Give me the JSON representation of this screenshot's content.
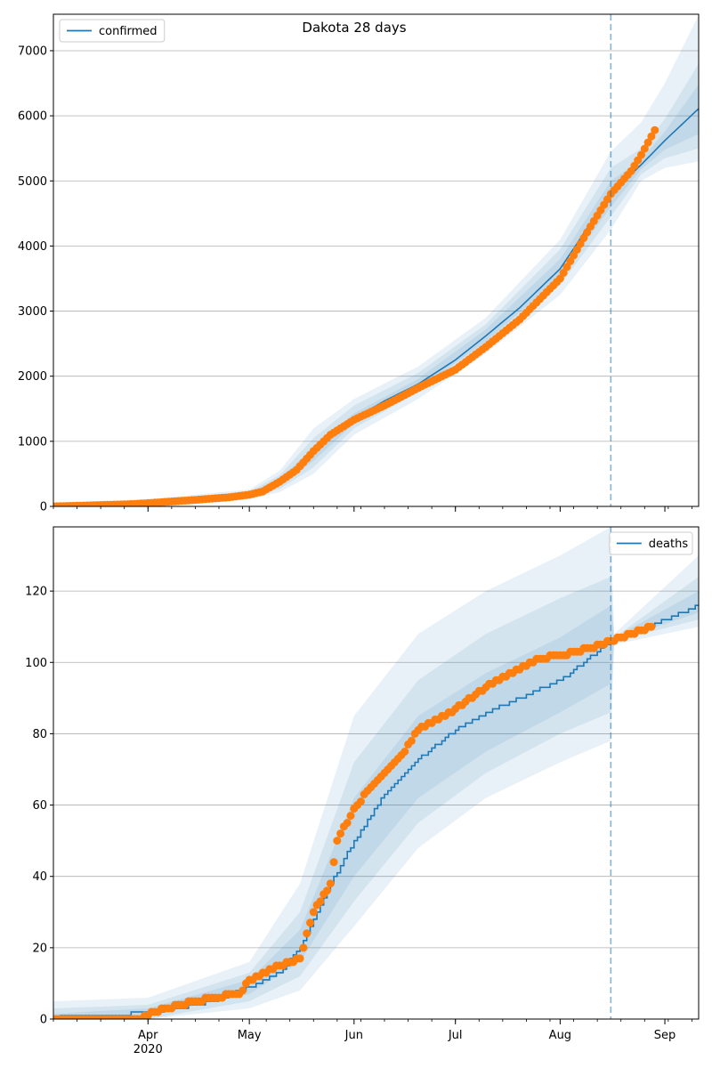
{
  "title": "Dakota 28 days",
  "colors": {
    "model": "#1f77b4",
    "observed": "#ff7f0e",
    "grid": "#b0b0b0"
  },
  "x_tick_labels": [
    {
      "date": "2020-04-01",
      "label": "Apr",
      "sublabel": "2020"
    },
    {
      "date": "2020-05-01",
      "label": "May"
    },
    {
      "date": "2020-06-01",
      "label": "Jun"
    },
    {
      "date": "2020-07-01",
      "label": "Jul"
    },
    {
      "date": "2020-08-01",
      "label": "Aug"
    },
    {
      "date": "2020-09-01",
      "label": "Sep"
    }
  ],
  "chart_data": [
    {
      "type": "line",
      "legend": {
        "label": "confirmed",
        "position": "upper left"
      },
      "x_range": [
        "2020-03-04",
        "2020-09-11"
      ],
      "ylim": [
        0,
        7560
      ],
      "y_ticks": [
        0,
        1000,
        2000,
        3000,
        4000,
        5000,
        6000,
        7000
      ],
      "grid": "horizontal",
      "forecast_start": "2020-08-16",
      "model": {
        "name": "confirmed",
        "points": [
          [
            "2020-03-04",
            0
          ],
          [
            "2020-03-20",
            10
          ],
          [
            "2020-04-01",
            50
          ],
          [
            "2020-04-15",
            100
          ],
          [
            "2020-04-25",
            140
          ],
          [
            "2020-05-01",
            180
          ],
          [
            "2020-05-05",
            230
          ],
          [
            "2020-05-10",
            380
          ],
          [
            "2020-05-15",
            560
          ],
          [
            "2020-05-20",
            800
          ],
          [
            "2020-05-25",
            1050
          ],
          [
            "2020-06-01",
            1350
          ],
          [
            "2020-06-10",
            1620
          ],
          [
            "2020-06-20",
            1880
          ],
          [
            "2020-07-01",
            2250
          ],
          [
            "2020-07-10",
            2620
          ],
          [
            "2020-07-20",
            3050
          ],
          [
            "2020-08-01",
            3650
          ],
          [
            "2020-08-10",
            4350
          ],
          [
            "2020-08-16",
            4800
          ],
          [
            "2020-08-25",
            5250
          ],
          [
            "2020-09-01",
            5620
          ],
          [
            "2020-09-11",
            6110
          ]
        ]
      },
      "bands": [
        {
          "label": "outer",
          "points": [
            [
              "2020-03-04",
              0,
              60
            ],
            [
              "2020-04-01",
              10,
              110
            ],
            [
              "2020-05-01",
              110,
              260
            ],
            [
              "2020-05-10",
              220,
              550
            ],
            [
              "2020-05-20",
              500,
              1200
            ],
            [
              "2020-06-01",
              1100,
              1650
            ],
            [
              "2020-06-20",
              1650,
              2150
            ],
            [
              "2020-07-10",
              2350,
              2900
            ],
            [
              "2020-08-01",
              3250,
              4100
            ],
            [
              "2020-08-16",
              4250,
              5450
            ],
            [
              "2020-08-25",
              5000,
              5900
            ],
            [
              "2020-09-01",
              5200,
              6500
            ],
            [
              "2020-09-11",
              5300,
              7550
            ]
          ]
        },
        {
          "label": "mid",
          "points": [
            [
              "2020-03-04",
              0,
              40
            ],
            [
              "2020-04-01",
              20,
              90
            ],
            [
              "2020-05-01",
              130,
              230
            ],
            [
              "2020-05-10",
              270,
              480
            ],
            [
              "2020-05-20",
              600,
              1050
            ],
            [
              "2020-06-01",
              1200,
              1550
            ],
            [
              "2020-06-20",
              1750,
              2050
            ],
            [
              "2020-07-10",
              2450,
              2800
            ],
            [
              "2020-08-01",
              3400,
              3950
            ],
            [
              "2020-08-16",
              4450,
              5200
            ],
            [
              "2020-08-25",
              5100,
              5500
            ],
            [
              "2020-09-01",
              5350,
              5950
            ],
            [
              "2020-09-11",
              5500,
              6800
            ]
          ]
        },
        {
          "label": "inner",
          "points": [
            [
              "2020-03-04",
              0,
              20
            ],
            [
              "2020-04-01",
              35,
              70
            ],
            [
              "2020-05-01",
              150,
              210
            ],
            [
              "2020-05-10",
              320,
              430
            ],
            [
              "2020-05-20",
              700,
              900
            ],
            [
              "2020-06-01",
              1270,
              1430
            ],
            [
              "2020-06-20",
              1800,
              1960
            ],
            [
              "2020-07-10",
              2530,
              2720
            ],
            [
              "2020-08-01",
              3520,
              3800
            ],
            [
              "2020-08-16",
              4600,
              5000
            ],
            [
              "2020-08-25",
              5180,
              5330
            ],
            [
              "2020-09-01",
              5480,
              5760
            ],
            [
              "2020-09-11",
              5720,
              6480
            ]
          ]
        }
      ],
      "observed_points": [
        [
          "2020-03-04",
          0
        ],
        [
          "2020-03-25",
          30
        ],
        [
          "2020-04-01",
          50
        ],
        [
          "2020-04-15",
          100
        ],
        [
          "2020-04-25",
          140
        ],
        [
          "2020-05-01",
          180
        ],
        [
          "2020-05-05",
          230
        ],
        [
          "2020-05-10",
          380
        ],
        [
          "2020-05-15",
          560
        ],
        [
          "2020-05-20",
          850
        ],
        [
          "2020-05-25",
          1100
        ],
        [
          "2020-06-01",
          1330
        ],
        [
          "2020-06-10",
          1550
        ],
        [
          "2020-06-20",
          1820
        ],
        [
          "2020-07-01",
          2100
        ],
        [
          "2020-07-10",
          2450
        ],
        [
          "2020-07-20",
          2870
        ],
        [
          "2020-08-01",
          3500
        ],
        [
          "2020-08-10",
          4300
        ],
        [
          "2020-08-16",
          4800
        ],
        [
          "2020-08-22",
          5150
        ],
        [
          "2020-08-25",
          5400
        ],
        [
          "2020-08-29",
          5780
        ]
      ]
    },
    {
      "type": "line",
      "legend": {
        "label": "deaths",
        "position": "upper right"
      },
      "x_range": [
        "2020-03-04",
        "2020-09-11"
      ],
      "ylim": [
        0,
        138
      ],
      "y_ticks": [
        0,
        20,
        40,
        60,
        80,
        100,
        120
      ],
      "grid": "horizontal",
      "forecast_start": "2020-08-16",
      "model": {
        "name": "deaths",
        "points": [
          [
            "2020-03-04",
            0
          ],
          [
            "2020-03-08",
            1
          ],
          [
            "2020-03-26",
            1
          ],
          [
            "2020-03-28",
            2
          ],
          [
            "2020-04-01",
            2
          ],
          [
            "2020-04-10",
            3
          ],
          [
            "2020-04-20",
            5
          ],
          [
            "2020-05-01",
            9
          ],
          [
            "2020-05-10",
            13
          ],
          [
            "2020-05-16",
            20
          ],
          [
            "2020-05-20",
            28
          ],
          [
            "2020-05-25",
            38
          ],
          [
            "2020-06-01",
            50
          ],
          [
            "2020-06-10",
            63
          ],
          [
            "2020-06-20",
            73
          ],
          [
            "2020-07-01",
            81
          ],
          [
            "2020-07-15",
            88
          ],
          [
            "2020-08-01",
            95
          ],
          [
            "2020-08-16",
            106
          ],
          [
            "2020-08-25",
            109
          ],
          [
            "2020-09-01",
            112
          ],
          [
            "2020-09-11",
            116
          ]
        ]
      },
      "bands": [
        {
          "label": "outer",
          "points": [
            [
              "2020-03-04",
              0,
              5
            ],
            [
              "2020-04-01",
              0,
              6
            ],
            [
              "2020-05-01",
              3,
              16
            ],
            [
              "2020-05-16",
              8,
              38
            ],
            [
              "2020-06-01",
              26,
              85
            ],
            [
              "2020-06-20",
              48,
              108
            ],
            [
              "2020-07-10",
              62,
              120
            ],
            [
              "2020-08-01",
              72,
              130
            ],
            [
              "2020-08-16",
              78,
              138
            ],
            [
              "2020-08-17",
              105,
              108
            ],
            [
              "2020-09-11",
              110,
              130
            ]
          ]
        },
        {
          "label": "mid",
          "points": [
            [
              "2020-03-04",
              0,
              3
            ],
            [
              "2020-04-01",
              0,
              4
            ],
            [
              "2020-05-01",
              5,
              13
            ],
            [
              "2020-05-16",
              12,
              30
            ],
            [
              "2020-06-01",
              33,
              72
            ],
            [
              "2020-06-20",
              55,
              95
            ],
            [
              "2020-07-10",
              69,
              108
            ],
            [
              "2020-08-01",
              80,
              118
            ],
            [
              "2020-08-16",
              86,
              124
            ],
            [
              "2020-08-17",
              106,
              107
            ],
            [
              "2020-09-11",
              112,
              124
            ]
          ]
        },
        {
          "label": "inner",
          "points": [
            [
              "2020-03-04",
              0,
              1.5
            ],
            [
              "2020-04-01",
              1,
              3
            ],
            [
              "2020-05-01",
              7,
              11
            ],
            [
              "2020-05-16",
              16,
              25
            ],
            [
              "2020-06-01",
              40,
              62
            ],
            [
              "2020-06-20",
              62,
              85
            ],
            [
              "2020-07-10",
              75,
              97
            ],
            [
              "2020-08-01",
              86,
              107
            ],
            [
              "2020-08-16",
              94,
              116
            ],
            [
              "2020-08-17",
              106,
              107
            ],
            [
              "2020-09-11",
              114,
              120
            ]
          ]
        }
      ],
      "observed_points": [
        [
          "2020-03-04",
          0
        ],
        [
          "2020-03-30",
          0
        ],
        [
          "2020-04-03",
          2
        ],
        [
          "2020-04-10",
          4
        ],
        [
          "2020-04-20",
          6
        ],
        [
          "2020-04-28",
          7
        ],
        [
          "2020-05-01",
          11
        ],
        [
          "2020-05-10",
          15
        ],
        [
          "2020-05-16",
          17
        ],
        [
          "2020-05-20",
          30
        ],
        [
          "2020-05-25",
          38
        ],
        [
          "2020-05-27",
          50
        ],
        [
          "2020-06-01",
          59
        ],
        [
          "2020-06-07",
          66
        ],
        [
          "2020-06-15",
          74
        ],
        [
          "2020-06-20",
          81
        ],
        [
          "2020-07-01",
          87
        ],
        [
          "2020-07-10",
          93
        ],
        [
          "2020-07-20",
          98
        ],
        [
          "2020-07-25",
          101
        ],
        [
          "2020-08-01",
          102
        ],
        [
          "2020-08-10",
          104
        ],
        [
          "2020-08-16",
          106
        ],
        [
          "2020-08-22",
          108
        ],
        [
          "2020-08-28",
          110
        ]
      ]
    }
  ]
}
